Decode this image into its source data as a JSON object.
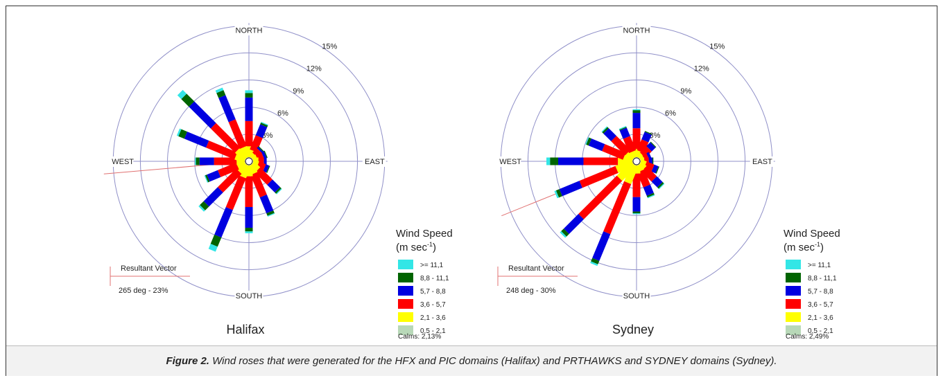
{
  "caption": {
    "figure_label": "Figure 2.",
    "text": " Wind roses that were generated for the HFX and PIC domains (Halifax) and PRTHAWKS and SYDNEY domains (Sydney)."
  },
  "colors": {
    "ring": "#8f8fc8",
    "calm": "#b8d8b8",
    "bin_0": "#ffff00",
    "bin_1": "#ff0000",
    "bin_2": "#0000e0",
    "bin_3": "#006400",
    "bin_4": "#33e6e6",
    "resultant": "#e07070"
  },
  "chart_data": [
    {
      "type": "wind-rose",
      "title": "Halifax",
      "direction_labels": [
        "NORTH",
        "EAST",
        "SOUTH",
        "WEST"
      ],
      "ring_labels": [
        "3%",
        "6%",
        "9%",
        "12%",
        "15%"
      ],
      "ring_values": [
        3,
        6,
        9,
        12,
        15
      ],
      "legend_title": "Wind Speed",
      "legend_unit_base": "(m sec",
      "legend_unit_exp": "-1",
      "legend_unit_close": ")",
      "speed_bins": [
        ">= 11,1",
        "8,8 - 11,1",
        "5,7 - 8,8",
        "3,6 - 5,7",
        "2,1 - 3,6",
        "0,5 - 2,1"
      ],
      "calms": "Calms: 2,13%",
      "resultant_label": "Resultant Vector",
      "resultant_value": "265 deg - 23%",
      "resultant_direction_deg": 265,
      "directions_deg": [
        0,
        22.5,
        45,
        67.5,
        90,
        112.5,
        135,
        157.5,
        180,
        202.5,
        225,
        247.5,
        270,
        292.5,
        315,
        337.5
      ],
      "series_order": [
        "2,1 - 3,6",
        "3,6 - 5,7",
        "5,7 - 8,8",
        "8,8 - 11,1",
        ">= 11,1"
      ],
      "percent_by_direction": [
        [
          1.2,
          2.8,
          2.6,
          0.5,
          0.3
        ],
        [
          0.8,
          1.7,
          1.3,
          0.2,
          0.1
        ],
        [
          0.5,
          0.7,
          0.2,
          0.1,
          0.0
        ],
        [
          0.5,
          0.7,
          0.3,
          0.1,
          0.0
        ],
        [
          0.6,
          0.6,
          0.3,
          0.0,
          0.0
        ],
        [
          0.6,
          0.8,
          0.4,
          0.1,
          0.0
        ],
        [
          0.9,
          1.9,
          1.2,
          0.2,
          0.1
        ],
        [
          1.0,
          2.7,
          1.9,
          0.3,
          0.1
        ],
        [
          1.2,
          3.4,
          2.3,
          0.4,
          0.2
        ],
        [
          1.4,
          3.8,
          3.3,
          1.1,
          0.6
        ],
        [
          1.1,
          2.9,
          2.2,
          0.6,
          0.2
        ],
        [
          0.9,
          2.2,
          1.3,
          0.2,
          0.1
        ],
        [
          0.9,
          2.5,
          1.6,
          0.4,
          0.1
        ],
        [
          1.1,
          3.4,
          2.6,
          0.7,
          0.2
        ],
        [
          1.3,
          3.8,
          3.4,
          1.2,
          0.6
        ],
        [
          1.2,
          3.2,
          2.9,
          0.6,
          0.3
        ]
      ]
    },
    {
      "type": "wind-rose",
      "title": "Sydney",
      "direction_labels": [
        "NORTH",
        "EAST",
        "SOUTH",
        "WEST"
      ],
      "ring_labels": [
        "3%",
        "6%",
        "9%",
        "12%",
        "15%"
      ],
      "ring_values": [
        3,
        6,
        9,
        12,
        15
      ],
      "legend_title": "Wind Speed",
      "legend_unit_base": "(m sec",
      "legend_unit_exp": "-1",
      "legend_unit_close": ")",
      "speed_bins": [
        ">= 11,1",
        "8,8 - 11,1",
        "5,7 - 8,8",
        "3,6 - 5,7",
        "2,1 - 3,6",
        "0,5 - 2,1"
      ],
      "calms": "Calms: 2,49%",
      "resultant_label": "Resultant Vector",
      "resultant_value": "248 deg - 30%",
      "resultant_direction_deg": 248,
      "directions_deg": [
        0,
        22.5,
        45,
        67.5,
        90,
        112.5,
        135,
        157.5,
        180,
        202.5,
        225,
        247.5,
        270,
        292.5,
        315,
        337.5
      ],
      "series_order": [
        "2,1 - 3,6",
        "3,6 - 5,7",
        "5,7 - 8,8",
        "8,8 - 11,1",
        ">= 11,1"
      ],
      "percent_by_direction": [
        [
          0.9,
          2.3,
          1.7,
          0.3,
          0.1
        ],
        [
          0.7,
          1.3,
          0.9,
          0.1,
          0.0
        ],
        [
          0.5,
          1.0,
          0.6,
          0.1,
          0.0
        ],
        [
          0.4,
          0.5,
          0.3,
          0.0,
          0.0
        ],
        [
          0.4,
          0.5,
          0.4,
          0.1,
          0.0
        ],
        [
          0.6,
          0.9,
          0.5,
          0.1,
          0.0
        ],
        [
          0.7,
          1.6,
          0.9,
          0.2,
          0.1
        ],
        [
          0.7,
          1.8,
          1.0,
          0.2,
          0.1
        ],
        [
          0.9,
          2.6,
          1.6,
          0.2,
          0.1
        ],
        [
          2.1,
          6.0,
          3.2,
          0.4,
          0.2
        ],
        [
          2.2,
          6.0,
          2.3,
          0.4,
          0.2
        ],
        [
          1.9,
          4.3,
          2.4,
          0.4,
          0.2
        ],
        [
          1.6,
          3.8,
          2.8,
          0.9,
          0.4
        ],
        [
          1.0,
          2.5,
          1.6,
          0.3,
          0.1
        ],
        [
          0.9,
          2.2,
          1.2,
          0.2,
          0.1
        ],
        [
          0.7,
          1.7,
          1.0,
          0.1,
          0.1
        ]
      ]
    }
  ]
}
